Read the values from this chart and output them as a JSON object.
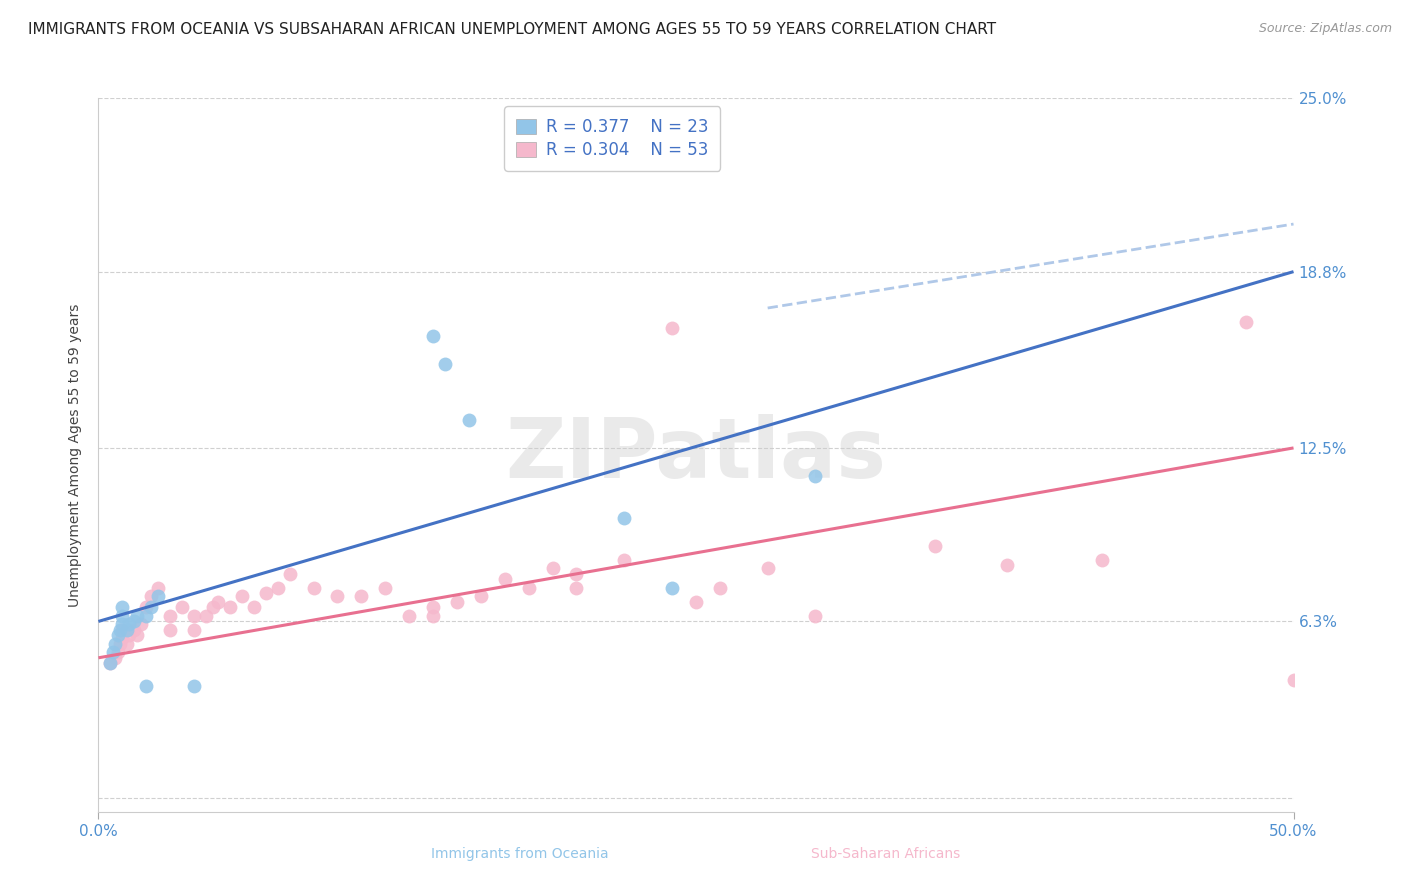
{
  "title": "IMMIGRANTS FROM OCEANIA VS SUBSAHARAN AFRICAN UNEMPLOYMENT AMONG AGES 55 TO 59 YEARS CORRELATION CHART",
  "source": "Source: ZipAtlas.com",
  "ylabel": "Unemployment Among Ages 55 to 59 years",
  "xlim": [
    0.0,
    0.5
  ],
  "ylim": [
    -0.005,
    0.25
  ],
  "yticks": [
    0.0,
    0.063,
    0.125,
    0.188,
    0.25
  ],
  "ytick_labels": [
    "",
    "6.3%",
    "12.5%",
    "18.8%",
    "25.0%"
  ],
  "xtick_labels": [
    "0.0%",
    "50.0%"
  ],
  "background_color": "#ffffff",
  "grid_color": "#d0d0d0",
  "watermark": "ZIPatlas",
  "legend_R1": "0.377",
  "legend_N1": "23",
  "legend_R2": "0.304",
  "legend_N2": "53",
  "oceania_color": "#92c5e8",
  "subsaharan_color": "#f5b8cc",
  "line_oceania_color": "#4472c4",
  "line_subsaharan_color": "#e87090",
  "dashed_line_color": "#b0c8e8",
  "oceania_x": [
    0.005,
    0.006,
    0.007,
    0.008,
    0.009,
    0.01,
    0.01,
    0.01,
    0.012,
    0.013,
    0.015,
    0.016,
    0.02,
    0.022,
    0.025,
    0.14,
    0.145,
    0.155,
    0.22,
    0.24,
    0.3,
    0.02,
    0.04
  ],
  "oceania_y": [
    0.048,
    0.052,
    0.055,
    0.058,
    0.06,
    0.062,
    0.065,
    0.068,
    0.06,
    0.062,
    0.063,
    0.065,
    0.065,
    0.068,
    0.072,
    0.165,
    0.155,
    0.135,
    0.1,
    0.075,
    0.115,
    0.04,
    0.04
  ],
  "subsaharan_x": [
    0.005,
    0.007,
    0.008,
    0.009,
    0.01,
    0.01,
    0.012,
    0.013,
    0.015,
    0.016,
    0.018,
    0.02,
    0.022,
    0.025,
    0.03,
    0.03,
    0.035,
    0.04,
    0.04,
    0.045,
    0.048,
    0.05,
    0.055,
    0.06,
    0.065,
    0.07,
    0.075,
    0.08,
    0.09,
    0.1,
    0.11,
    0.12,
    0.13,
    0.14,
    0.14,
    0.15,
    0.16,
    0.17,
    0.18,
    0.19,
    0.2,
    0.2,
    0.22,
    0.24,
    0.25,
    0.26,
    0.28,
    0.3,
    0.35,
    0.38,
    0.42,
    0.48,
    0.5
  ],
  "subsaharan_y": [
    0.048,
    0.05,
    0.052,
    0.055,
    0.057,
    0.06,
    0.055,
    0.058,
    0.06,
    0.058,
    0.062,
    0.068,
    0.072,
    0.075,
    0.06,
    0.065,
    0.068,
    0.06,
    0.065,
    0.065,
    0.068,
    0.07,
    0.068,
    0.072,
    0.068,
    0.073,
    0.075,
    0.08,
    0.075,
    0.072,
    0.072,
    0.075,
    0.065,
    0.065,
    0.068,
    0.07,
    0.072,
    0.078,
    0.075,
    0.082,
    0.075,
    0.08,
    0.085,
    0.168,
    0.07,
    0.075,
    0.082,
    0.065,
    0.09,
    0.083,
    0.085,
    0.17,
    0.042
  ],
  "title_fontsize": 11,
  "source_fontsize": 9,
  "axis_label_fontsize": 10,
  "tick_fontsize": 11,
  "legend_fontsize": 12,
  "oceania_line_x": [
    0.0,
    0.5
  ],
  "oceania_line_y": [
    0.063,
    0.188
  ],
  "subsaharan_line_x": [
    0.0,
    0.5
  ],
  "subsaharan_line_y": [
    0.05,
    0.125
  ],
  "dashed_line_x": [
    0.28,
    0.5
  ],
  "dashed_line_y": [
    0.175,
    0.205
  ]
}
